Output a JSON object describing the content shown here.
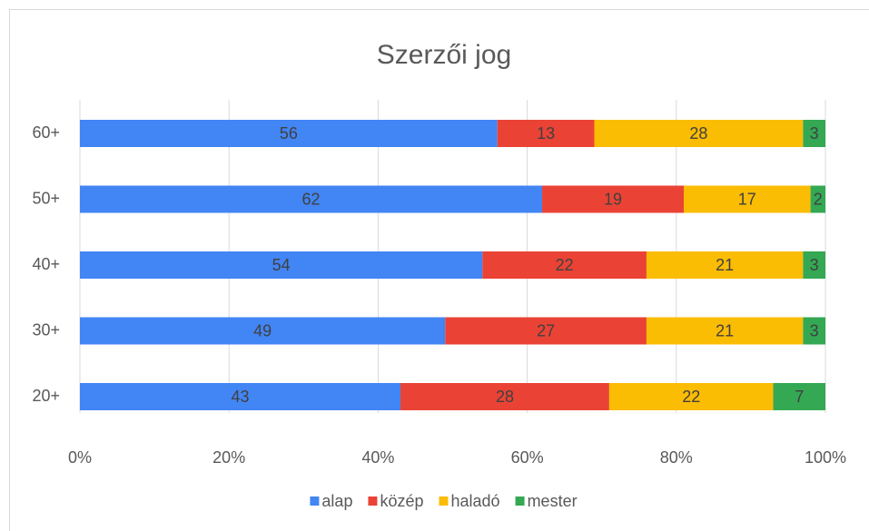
{
  "chart_data": {
    "type": "stacked-bar-horizontal",
    "title": "Szerzői jog",
    "categories": [
      "60+",
      "50+",
      "40+",
      "30+",
      "20+"
    ],
    "series": [
      {
        "name": "alap",
        "color": "#4285f4",
        "values": [
          56,
          62,
          54,
          49,
          43
        ]
      },
      {
        "name": "közép",
        "color": "#ea4335",
        "values": [
          13,
          19,
          22,
          27,
          28
        ]
      },
      {
        "name": "haladó",
        "color": "#fbbc04",
        "values": [
          28,
          17,
          21,
          21,
          22
        ]
      },
      {
        "name": "mester",
        "color": "#34a853",
        "values": [
          3,
          2,
          3,
          3,
          7
        ]
      }
    ],
    "xlim": [
      0,
      100
    ],
    "xticks": [
      {
        "value": 0,
        "label": "0%"
      },
      {
        "value": 20,
        "label": "20%"
      },
      {
        "value": 40,
        "label": "40%"
      },
      {
        "value": 60,
        "label": "60%"
      },
      {
        "value": 80,
        "label": "80%"
      },
      {
        "value": 100,
        "label": "100%"
      }
    ],
    "grid": true,
    "legend": "bottom"
  }
}
